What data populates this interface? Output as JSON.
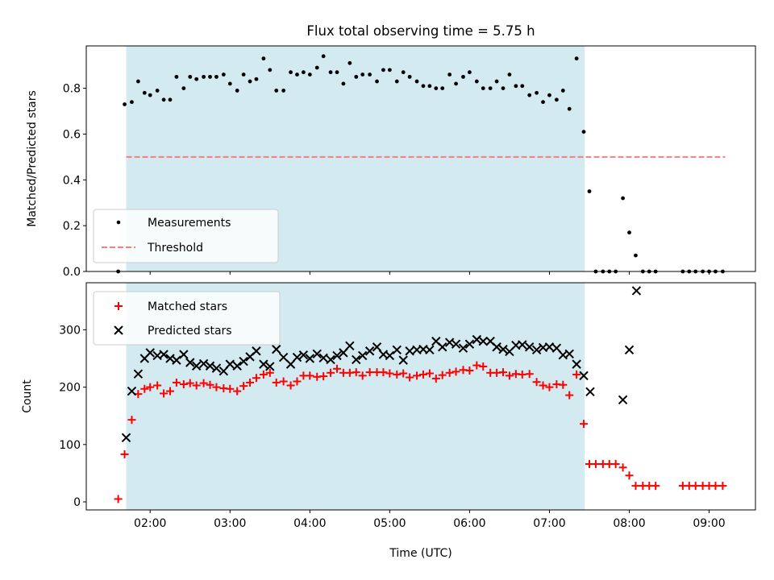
{
  "chart_data": [
    {
      "type": "scatter",
      "title": "Flux total observing time = 5.75 h",
      "xlabel": "",
      "ylabel": "Matched/Predicted stars",
      "xlim": [
        1.2,
        9.58
      ],
      "ylim": [
        0,
        0.985
      ],
      "yticks": [
        0.0,
        0.2,
        0.4,
        0.6,
        0.8
      ],
      "ytick_labels": [
        "0.0",
        "0.2",
        "0.4",
        "0.6",
        "0.8"
      ],
      "xticks": [
        2,
        3,
        4,
        5,
        6,
        7,
        8,
        9
      ],
      "shaded_span": [
        1.7,
        7.44
      ],
      "shade_color": "#d3eaf1",
      "legend": "lower-left",
      "series": [
        {
          "name": "Measurements",
          "marker": "dot",
          "color": "#000000",
          "x": [
            1.6,
            1.68,
            1.77,
            1.85,
            1.93,
            2.0,
            2.09,
            2.17,
            2.25,
            2.33,
            2.42,
            2.5,
            2.58,
            2.67,
            2.75,
            2.83,
            2.92,
            3.0,
            3.09,
            3.17,
            3.25,
            3.33,
            3.42,
            3.5,
            3.58,
            3.67,
            3.76,
            3.84,
            3.92,
            4.0,
            4.09,
            4.17,
            4.26,
            4.34,
            4.42,
            4.5,
            4.58,
            4.66,
            4.75,
            4.84,
            4.92,
            5.0,
            5.09,
            5.17,
            5.25,
            5.34,
            5.42,
            5.5,
            5.58,
            5.66,
            5.75,
            5.83,
            5.92,
            6.0,
            6.09,
            6.17,
            6.26,
            6.34,
            6.42,
            6.5,
            6.58,
            6.66,
            6.75,
            6.84,
            6.92,
            7.0,
            7.09,
            7.17,
            7.25,
            7.34,
            7.43,
            7.5,
            7.58,
            7.67,
            7.75,
            7.83,
            7.92,
            8.0,
            8.08,
            8.17,
            8.25,
            8.33,
            8.67,
            8.75,
            8.83,
            8.92,
            9.0,
            9.08,
            9.17
          ],
          "y": [
            0.0,
            0.73,
            0.74,
            0.83,
            0.78,
            0.77,
            0.79,
            0.75,
            0.75,
            0.85,
            0.8,
            0.85,
            0.84,
            0.85,
            0.85,
            0.85,
            0.86,
            0.82,
            0.79,
            0.86,
            0.83,
            0.84,
            0.93,
            0.88,
            0.79,
            0.79,
            0.87,
            0.86,
            0.87,
            0.86,
            0.89,
            0.94,
            0.87,
            0.87,
            0.82,
            0.91,
            0.85,
            0.86,
            0.86,
            0.83,
            0.88,
            0.88,
            0.83,
            0.87,
            0.85,
            0.83,
            0.81,
            0.81,
            0.8,
            0.8,
            0.86,
            0.82,
            0.85,
            0.87,
            0.83,
            0.8,
            0.8,
            0.83,
            0.8,
            0.86,
            0.81,
            0.81,
            0.77,
            0.78,
            0.74,
            0.77,
            0.75,
            0.79,
            0.71,
            0.93,
            0.61,
            0.35,
            0.0,
            0.0,
            0.0,
            0.0,
            0.32,
            0.17,
            0.07,
            0.0,
            0.0,
            0.0,
            0.0,
            0.0,
            0.0,
            0.0,
            0.0,
            0.0,
            0.0
          ]
        },
        {
          "name": "Threshold",
          "style": "dashed",
          "color": "#f08080",
          "x": [
            1.7,
            9.2
          ],
          "y": [
            0.5,
            0.5
          ]
        }
      ]
    },
    {
      "type": "scatter",
      "title": "",
      "xlabel": "Time (UTC)",
      "ylabel": "Count",
      "xlim": [
        1.2,
        9.58
      ],
      "ylim": [
        -14,
        382
      ],
      "yticks": [
        0,
        100,
        200,
        300
      ],
      "ytick_labels": [
        "0",
        "100",
        "200",
        "300"
      ],
      "xticks": [
        2,
        3,
        4,
        5,
        6,
        7,
        8,
        9
      ],
      "xtick_labels": [
        "02:00",
        "03:00",
        "04:00",
        "05:00",
        "06:00",
        "07:00",
        "08:00",
        "09:00"
      ],
      "shaded_span": [
        1.7,
        7.44
      ],
      "shade_color": "#d3eaf1",
      "legend": "top-left",
      "series": [
        {
          "name": "Matched stars",
          "marker": "plus",
          "color": "#ff0000",
          "x": [
            1.6,
            1.68,
            1.77,
            1.85,
            1.93,
            2.0,
            2.09,
            2.17,
            2.25,
            2.33,
            2.42,
            2.5,
            2.58,
            2.67,
            2.75,
            2.83,
            2.92,
            3.0,
            3.09,
            3.17,
            3.25,
            3.33,
            3.42,
            3.5,
            3.58,
            3.67,
            3.76,
            3.84,
            3.92,
            4.0,
            4.09,
            4.17,
            4.26,
            4.34,
            4.42,
            4.5,
            4.58,
            4.66,
            4.75,
            4.84,
            4.92,
            5.0,
            5.09,
            5.17,
            5.25,
            5.34,
            5.42,
            5.5,
            5.58,
            5.66,
            5.75,
            5.83,
            5.92,
            6.0,
            6.09,
            6.17,
            6.26,
            6.34,
            6.42,
            6.5,
            6.58,
            6.66,
            6.75,
            6.84,
            6.92,
            7.0,
            7.09,
            7.17,
            7.25,
            7.34,
            7.43,
            7.5,
            7.58,
            7.67,
            7.75,
            7.83,
            7.92,
            8.0,
            8.08,
            8.17,
            8.25,
            8.33,
            8.67,
            8.75,
            8.83,
            8.92,
            9.0,
            9.08,
            9.17
          ],
          "y": [
            5,
            83,
            143,
            188,
            197,
            200,
            203,
            189,
            193,
            208,
            205,
            207,
            203,
            207,
            204,
            200,
            198,
            197,
            193,
            202,
            208,
            216,
            222,
            225,
            208,
            210,
            203,
            210,
            220,
            220,
            218,
            219,
            225,
            232,
            225,
            225,
            226,
            220,
            226,
            226,
            226,
            224,
            222,
            224,
            217,
            220,
            222,
            224,
            215,
            221,
            225,
            227,
            230,
            229,
            238,
            236,
            225,
            225,
            226,
            220,
            223,
            222,
            223,
            209,
            203,
            200,
            205,
            204,
            186,
            222,
            136,
            66,
            66,
            66,
            66,
            66,
            60,
            46,
            28,
            28,
            28,
            28,
            28,
            28,
            28,
            28,
            28,
            28,
            28
          ]
        },
        {
          "name": "Predicted stars",
          "marker": "x",
          "color": "#000000",
          "x": [
            1.7,
            1.77,
            1.85,
            1.93,
            2.0,
            2.09,
            2.17,
            2.25,
            2.33,
            2.42,
            2.5,
            2.58,
            2.67,
            2.75,
            2.83,
            2.92,
            3.0,
            3.09,
            3.17,
            3.25,
            3.33,
            3.42,
            3.5,
            3.58,
            3.67,
            3.76,
            3.84,
            3.92,
            4.0,
            4.09,
            4.17,
            4.26,
            4.34,
            4.42,
            4.5,
            4.58,
            4.66,
            4.75,
            4.84,
            4.92,
            5.0,
            5.09,
            5.17,
            5.25,
            5.34,
            5.42,
            5.5,
            5.58,
            5.66,
            5.75,
            5.83,
            5.92,
            6.0,
            6.09,
            6.17,
            6.26,
            6.34,
            6.42,
            6.5,
            6.58,
            6.66,
            6.75,
            6.84,
            6.92,
            7.0,
            7.09,
            7.17,
            7.25,
            7.34,
            7.43,
            7.51,
            7.92,
            8.0,
            8.09
          ],
          "y": [
            112,
            193,
            223,
            250,
            260,
            255,
            257,
            250,
            247,
            257,
            243,
            237,
            241,
            237,
            233,
            228,
            240,
            237,
            245,
            253,
            263,
            240,
            236,
            266,
            252,
            240,
            252,
            256,
            250,
            258,
            251,
            248,
            255,
            260,
            272,
            248,
            255,
            263,
            270,
            257,
            255,
            265,
            247,
            263,
            265,
            266,
            265,
            280,
            270,
            278,
            275,
            268,
            275,
            283,
            280,
            280,
            270,
            266,
            262,
            273,
            274,
            270,
            265,
            269,
            270,
            268,
            256,
            258,
            240,
            220,
            192,
            178,
            265,
            368
          ]
        }
      ]
    }
  ]
}
